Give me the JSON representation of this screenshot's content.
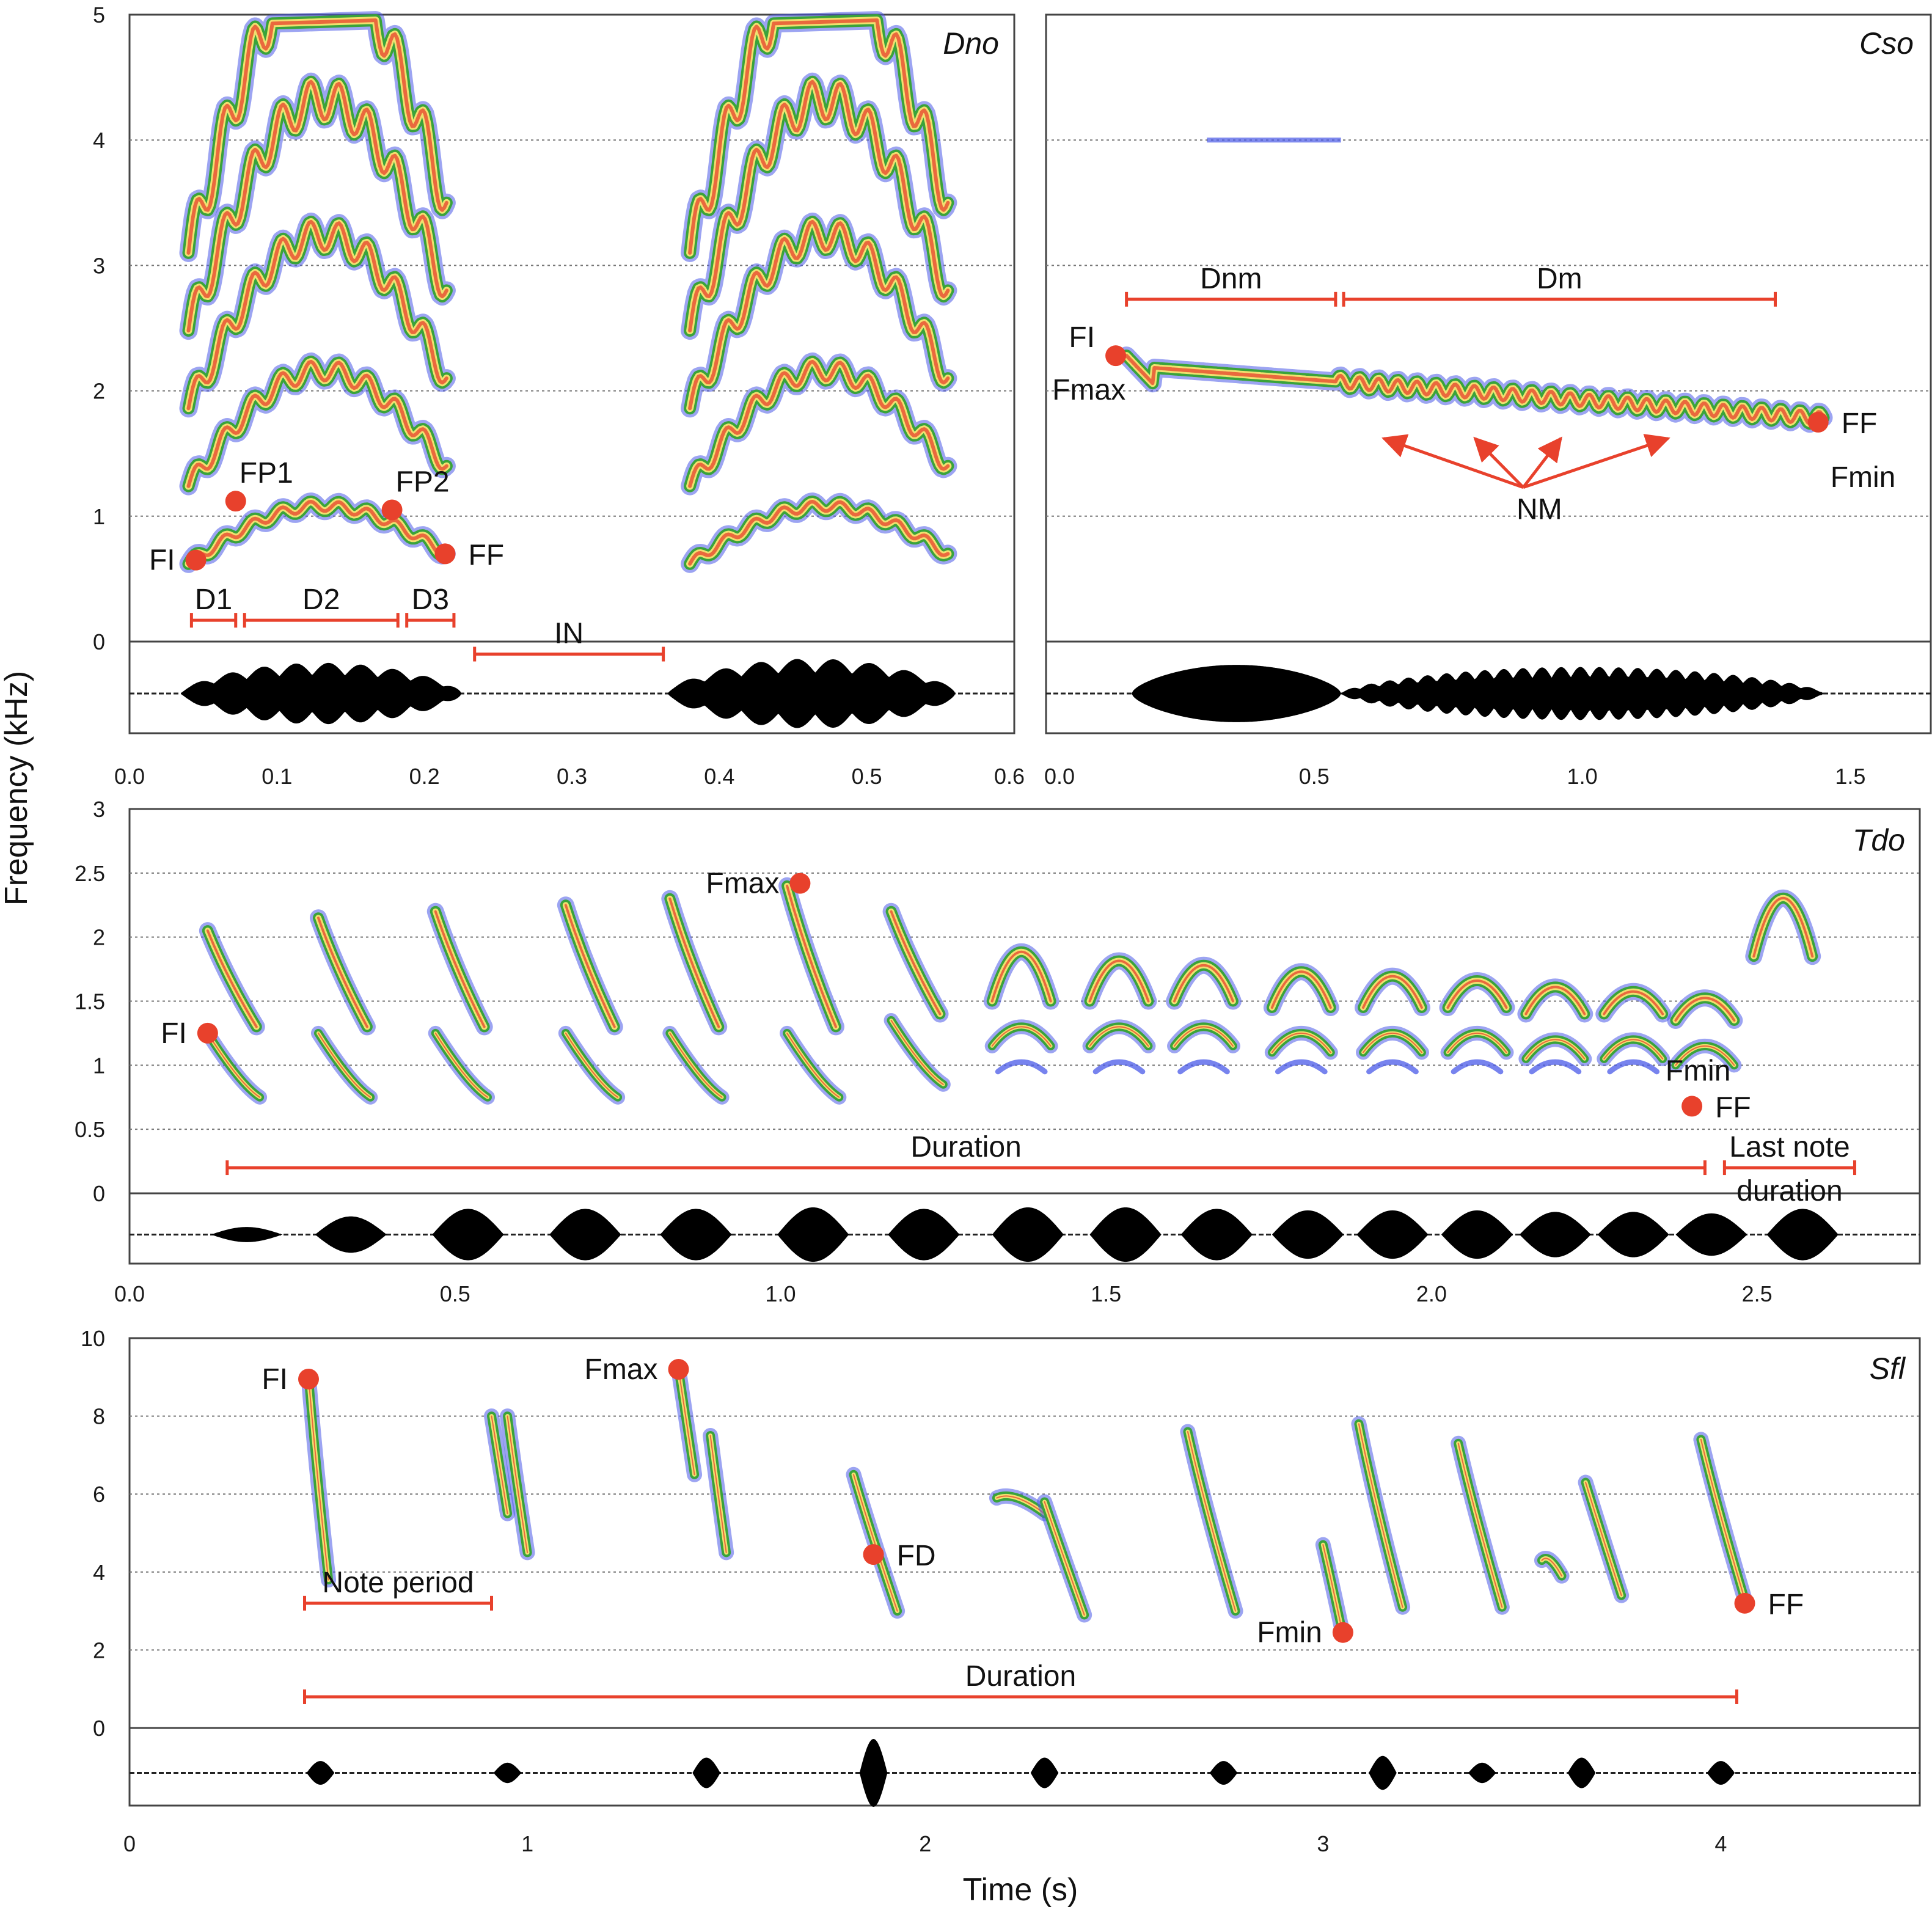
{
  "figure": {
    "xlabel": "Time (s)",
    "ylabel": "Frequency (kHz)"
  },
  "colors": {
    "annotation": "#e8412c",
    "spectro_low": "#4a5ae8",
    "spectro_mid": "#3aa33a",
    "spectro_high": "#f0e070",
    "spectro_peak": "#e8412c",
    "waveform": "#000000",
    "grid": "#777777"
  },
  "chart_data": [
    {
      "type": "spectrogram",
      "title": "Dno",
      "xlim": [
        0.0,
        0.6
      ],
      "ylim": [
        0,
        5
      ],
      "x_ticks": [
        0.0,
        0.1,
        0.2,
        0.3,
        0.4,
        0.5
      ],
      "x_tick_labels": [
        "0.0",
        "0.1",
        "0.2",
        "0.3",
        "0.4",
        "0.5"
      ],
      "x_tick_last_label": "0.6",
      "y_ticks": [
        0,
        1,
        2,
        3,
        4,
        5
      ],
      "y_tick_labels": [
        "0",
        "1",
        "2",
        "3",
        "4",
        "5"
      ],
      "grid": true,
      "notes": [
        {
          "t0": 0.04,
          "t1": 0.215,
          "f_start": 0.62,
          "f_end": 0.7,
          "harmonics": 5,
          "wobble": 0.04
        },
        {
          "t0": 0.38,
          "t1": 0.555,
          "f_start": 0.62,
          "f_end": 0.7,
          "harmonics": 5,
          "wobble": 0.04
        }
      ],
      "points": [
        {
          "label": "FI",
          "t": 0.045,
          "f": 0.65,
          "label_side": "left"
        },
        {
          "label": "FP1",
          "t": 0.072,
          "f": 1.12,
          "label_side": "above"
        },
        {
          "label": "FP2",
          "t": 0.178,
          "f": 1.05,
          "label_side": "above"
        },
        {
          "label": "FF",
          "t": 0.214,
          "f": 0.7,
          "label_side": "right"
        }
      ],
      "intervals": [
        {
          "label": "D1",
          "t0": 0.042,
          "t1": 0.072,
          "f": 0.17
        },
        {
          "label": "D2",
          "t0": 0.078,
          "t1": 0.182,
          "f": 0.17
        },
        {
          "label": "D3",
          "t0": 0.188,
          "t1": 0.22,
          "f": 0.17
        },
        {
          "label": "IN",
          "t0": 0.234,
          "t1": 0.362,
          "f": -0.1
        }
      ],
      "waveform_segments": [
        {
          "t0": 0.035,
          "t1": 0.225,
          "amp": 0.75,
          "burst_hz": 45
        },
        {
          "t0": 0.365,
          "t1": 0.56,
          "amp": 0.85,
          "burst_hz": 40
        }
      ]
    },
    {
      "type": "spectrogram",
      "title": "Cso",
      "xlim": [
        0.0,
        1.65
      ],
      "ylim": [
        0,
        5
      ],
      "x_ticks": [
        0.5,
        1.0,
        1.5
      ],
      "x_tick_labels": [
        "0.5",
        "1.0",
        "1.5"
      ],
      "x_tick_first_label": "0.0",
      "y_ticks": [
        0,
        1,
        2,
        3,
        4,
        5
      ],
      "grid": true,
      "notes": [
        {
          "t0": 0.15,
          "t1": 1.45,
          "f_start": 2.2,
          "f_end": 1.78,
          "harmonics": 1,
          "wobble": 0.05,
          "modulated_from": 0.54
        }
      ],
      "faint_line": {
        "t0": 0.3,
        "t1": 0.55,
        "f": 4.0
      },
      "points": [
        {
          "label": "FI",
          "t": 0.13,
          "f": 2.28,
          "label_side": "left"
        },
        {
          "label": "Fmax",
          "t": 0.13,
          "f": 2.28,
          "label_side": "left-below"
        },
        {
          "label": "FF",
          "t": 1.44,
          "f": 1.75,
          "label_side": "right"
        },
        {
          "label": "Fmin",
          "t": 1.44,
          "f": 1.75,
          "label_side": "right-below"
        }
      ],
      "intervals": [
        {
          "label": "Dnm",
          "t0": 0.15,
          "t1": 0.54,
          "f": 2.73
        },
        {
          "label": "Dm",
          "t0": 0.555,
          "t1": 1.36,
          "f": 2.73
        }
      ],
      "arrows": {
        "label": "NM",
        "from_t": 0.89,
        "from_f": 1.23,
        "to": [
          [
            0.63,
            1.62
          ],
          [
            0.8,
            1.62
          ],
          [
            0.96,
            1.62
          ],
          [
            1.16,
            1.62
          ]
        ]
      },
      "waveform_segments": [
        {
          "t0": 0.16,
          "t1": 0.55,
          "amp": 0.7,
          "burst_hz": 0
        },
        {
          "t0": 0.55,
          "t1": 1.45,
          "amp": 0.65,
          "burst_hz": 28
        }
      ]
    },
    {
      "type": "spectrogram",
      "title": "Tdo",
      "xlim": [
        0.0,
        2.75
      ],
      "ylim": [
        0,
        3
      ],
      "x_ticks": [
        0.0,
        0.5,
        1.0,
        1.5,
        2.0,
        2.5
      ],
      "x_tick_labels": [
        "0.0",
        "0.5",
        "1.0",
        "1.5",
        "2.0",
        "2.5"
      ],
      "y_ticks": [
        0,
        0.5,
        1,
        1.5,
        2,
        2.5,
        3
      ],
      "y_tick_labels": [
        "0",
        "0.5",
        "1",
        "1.5",
        "2",
        "2.5",
        "3"
      ],
      "grid": true,
      "notes": [
        {
          "t": 0.15,
          "f_top": 2.05,
          "f_bot": 1.3
        },
        {
          "t": 0.32,
          "f_top": 2.15,
          "f_bot": 1.3
        },
        {
          "t": 0.5,
          "f_top": 2.2,
          "f_bot": 1.3
        },
        {
          "t": 0.7,
          "f_top": 2.25,
          "f_bot": 1.3
        },
        {
          "t": 0.86,
          "f_top": 2.3,
          "f_bot": 1.3
        },
        {
          "t": 1.04,
          "f_top": 2.4,
          "f_bot": 1.3
        },
        {
          "t": 1.2,
          "f_top": 2.2,
          "f_bot": 1.4
        },
        {
          "t": 1.37,
          "f_top": 2.05,
          "f_bot": 1.5
        },
        {
          "t": 1.52,
          "f_top": 1.95,
          "f_bot": 1.5
        },
        {
          "t": 1.65,
          "f_top": 1.9,
          "f_bot": 1.5
        },
        {
          "t": 1.8,
          "f_top": 1.85,
          "f_bot": 1.45
        },
        {
          "t": 1.94,
          "f_top": 1.8,
          "f_bot": 1.45
        },
        {
          "t": 2.07,
          "f_top": 1.75,
          "f_bot": 1.45
        },
        {
          "t": 2.19,
          "f_top": 1.7,
          "f_bot": 1.4
        },
        {
          "t": 2.31,
          "f_top": 1.65,
          "f_bot": 1.4
        },
        {
          "t": 2.42,
          "f_top": 1.6,
          "f_bot": 1.35
        },
        {
          "t": 2.54,
          "f_top": 2.5,
          "f_bot": 1.85
        }
      ],
      "points": [
        {
          "label": "FI",
          "t": 0.12,
          "f": 1.25,
          "label_side": "left"
        },
        {
          "label": "Fmax",
          "t": 1.03,
          "f": 2.42,
          "label_side": "left"
        },
        {
          "label": "Fmin",
          "t": 2.4,
          "f": 0.68,
          "label_side": "above-left"
        },
        {
          "label": "FF",
          "t": 2.4,
          "f": 0.68,
          "label_side": "right"
        }
      ],
      "intervals": [
        {
          "label": "Duration",
          "t0": 0.15,
          "t1": 2.42,
          "f": 0.2
        },
        {
          "label": "Last note\nduration",
          "t0": 2.45,
          "t1": 2.65,
          "f": 0.2
        }
      ],
      "waveform_notes": [
        0.18,
        0.34,
        0.52,
        0.7,
        0.87,
        1.05,
        1.22,
        1.38,
        1.53,
        1.67,
        1.81,
        1.94,
        2.07,
        2.19,
        2.31,
        2.43,
        2.57
      ],
      "waveform_amps": [
        0.25,
        0.6,
        0.85,
        0.85,
        0.85,
        0.9,
        0.85,
        0.9,
        0.9,
        0.85,
        0.8,
        0.8,
        0.8,
        0.75,
        0.75,
        0.7,
        0.85
      ]
    },
    {
      "type": "spectrogram",
      "title": "Sfl",
      "xlim": [
        0.0,
        4.5
      ],
      "ylim": [
        0,
        10
      ],
      "x_ticks": [
        0,
        1,
        2,
        3,
        4
      ],
      "x_tick_labels": [
        "0",
        "1",
        "2",
        "3",
        "4"
      ],
      "y_ticks": [
        0,
        2,
        4,
        6,
        8,
        10
      ],
      "y_tick_labels": [
        "0",
        "2",
        "4",
        "6",
        "8",
        "10"
      ],
      "grid": true,
      "notes": [
        {
          "t0": 0.45,
          "t1": 0.5,
          "f0": 9.0,
          "f1": 3.8
        },
        {
          "t0": 0.91,
          "t1": 0.95,
          "f0": 8.0,
          "f1": 5.5
        },
        {
          "t0": 0.95,
          "t1": 1.0,
          "f0": 8.0,
          "f1": 4.5
        },
        {
          "t0": 1.38,
          "t1": 1.42,
          "f0": 9.2,
          "f1": 6.5
        },
        {
          "t0": 1.46,
          "t1": 1.5,
          "f0": 7.5,
          "f1": 4.5
        },
        {
          "t0": 1.82,
          "t1": 1.93,
          "f0": 6.5,
          "f1": 3.0
        },
        {
          "t0": 2.18,
          "t1": 2.3,
          "f0": 5.9,
          "f1": 5.5
        },
        {
          "t0": 2.3,
          "t1": 2.4,
          "f0": 5.8,
          "f1": 2.9
        },
        {
          "t0": 2.66,
          "t1": 2.78,
          "f0": 7.6,
          "f1": 3.0
        },
        {
          "t0": 3.0,
          "t1": 3.05,
          "f0": 4.7,
          "f1": 2.4
        },
        {
          "t0": 3.09,
          "t1": 3.2,
          "f0": 7.8,
          "f1": 3.1
        },
        {
          "t0": 3.34,
          "t1": 3.45,
          "f0": 7.3,
          "f1": 3.1
        },
        {
          "t0": 3.55,
          "t1": 3.6,
          "f0": 4.3,
          "f1": 3.9
        },
        {
          "t0": 3.66,
          "t1": 3.75,
          "f0": 6.3,
          "f1": 3.4
        },
        {
          "t0": 3.95,
          "t1": 4.06,
          "f0": 7.4,
          "f1": 3.3
        }
      ],
      "points": [
        {
          "label": "FI",
          "t": 0.45,
          "f": 8.95,
          "label_side": "left"
        },
        {
          "label": "Fmax",
          "t": 1.38,
          "f": 9.2,
          "label_side": "left"
        },
        {
          "label": "FD",
          "t": 1.87,
          "f": 4.45,
          "label_side": "right"
        },
        {
          "label": "Fmin",
          "t": 3.05,
          "f": 2.45,
          "label_side": "left"
        },
        {
          "label": "FF",
          "t": 4.06,
          "f": 3.2,
          "label_side": "right"
        }
      ],
      "intervals": [
        {
          "label": "Note period",
          "t0": 0.44,
          "t1": 0.91,
          "f": 3.2
        },
        {
          "label": "Duration",
          "t0": 0.44,
          "t1": 4.04,
          "f": 0.8
        }
      ],
      "waveform_notes": [
        0.48,
        0.95,
        1.45,
        1.87,
        2.3,
        2.75,
        3.15,
        3.4,
        3.65,
        4.0
      ],
      "waveform_amps": [
        0.35,
        0.3,
        0.45,
        1.0,
        0.45,
        0.35,
        0.5,
        0.3,
        0.45,
        0.35
      ]
    }
  ]
}
